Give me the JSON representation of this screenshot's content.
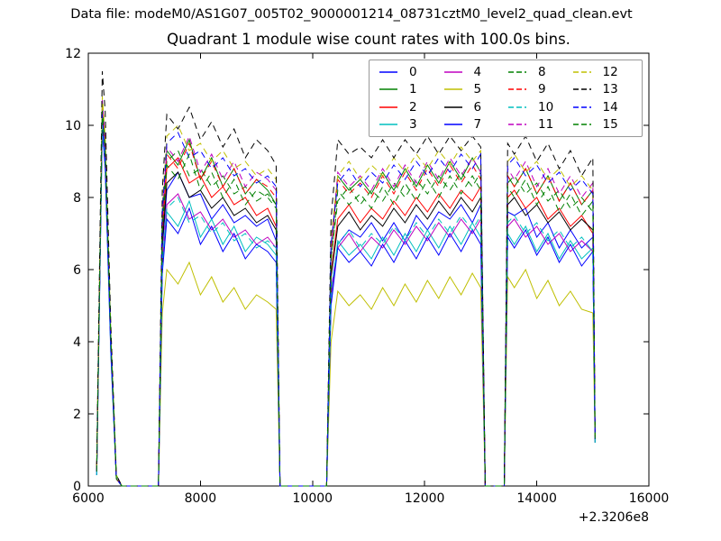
{
  "figure": {
    "datafile_label": "Data file: modeM0/AS1G07_005T02_9000001214_08731cztM0_level2_quad_clean.evt",
    "background_color": "#ffffff",
    "frame_color": "#000000",
    "legend_border_color": "#999999"
  },
  "chart_data": {
    "type": "line",
    "title": "Quadrant 1 module wise count rates with 100.0s bins.",
    "xlabel": "",
    "ylabel": "",
    "bin_seconds": 100.0,
    "grid": false,
    "legend_position": "upper center",
    "legend_columns": 4,
    "xlim": [
      6000,
      16000
    ],
    "ylim": [
      0,
      12
    ],
    "xticks": [
      6000,
      8000,
      10000,
      12000,
      14000,
      16000
    ],
    "yticks": [
      0,
      2,
      4,
      6,
      8,
      10,
      12
    ],
    "x_offset_label": "+2.3206e8",
    "x": [
      6150,
      6250,
      6300,
      6400,
      6500,
      6600,
      7250,
      7320,
      7400,
      7600,
      7800,
      8000,
      8200,
      8400,
      8600,
      8800,
      9000,
      9200,
      9350,
      9420,
      10250,
      10330,
      10450,
      10650,
      10850,
      11050,
      11250,
      11450,
      11650,
      11850,
      12050,
      12250,
      12450,
      12650,
      12850,
      13000,
      13080,
      13200,
      13420,
      13480,
      13600,
      13800,
      14000,
      14200,
      14400,
      14600,
      14800,
      15000,
      15040
    ],
    "series": [
      {
        "name": "0",
        "color": "#0000ff",
        "style": "solid",
        "values": [
          0.4,
          10.4,
          9.3,
          4.0,
          0.2,
          0,
          0,
          6.6,
          8.2,
          8.7,
          8.0,
          8.1,
          7.4,
          7.8,
          7.3,
          7.5,
          7.2,
          7.4,
          6.8,
          0,
          0,
          5.4,
          6.7,
          7.1,
          6.9,
          7.3,
          6.8,
          7.3,
          6.8,
          7.5,
          7.1,
          7.6,
          7.4,
          7.8,
          7.3,
          7.8,
          0,
          0,
          0,
          7.6,
          7.5,
          7.7,
          6.9,
          7.3,
          6.6,
          7.1,
          6.6,
          6.9,
          1.3
        ]
      },
      {
        "name": "1",
        "color": "#008000",
        "style": "solid",
        "values": [
          0.5,
          10.6,
          9.6,
          4.2,
          0.2,
          0,
          0,
          7.4,
          9.3,
          8.9,
          9.6,
          8.5,
          9.1,
          8.3,
          8.8,
          8.1,
          8.5,
          8.2,
          7.8,
          0,
          0,
          6.6,
          8.6,
          8.2,
          8.5,
          8.1,
          8.7,
          8.2,
          8.8,
          8.3,
          8.9,
          8.4,
          9.0,
          8.5,
          9.1,
          8.7,
          0,
          0,
          0,
          8.6,
          8.3,
          8.8,
          8.1,
          8.6,
          7.9,
          8.4,
          7.8,
          8.2,
          1.4
        ]
      },
      {
        "name": "2",
        "color": "#ff0000",
        "style": "solid",
        "values": [
          0.4,
          10.3,
          9.2,
          4.0,
          0.2,
          0,
          0,
          7.0,
          8.8,
          9.1,
          8.4,
          8.6,
          8.0,
          8.3,
          7.8,
          8.0,
          7.5,
          7.7,
          7.2,
          0,
          0,
          5.9,
          7.4,
          7.8,
          7.3,
          7.7,
          7.4,
          7.9,
          7.5,
          8.0,
          7.6,
          8.1,
          7.7,
          8.2,
          7.9,
          8.3,
          0,
          0,
          0,
          8.0,
          8.2,
          7.7,
          8.0,
          7.4,
          7.7,
          7.2,
          7.5,
          7.0,
          1.3
        ]
      },
      {
        "name": "3",
        "color": "#00bfbf",
        "style": "solid",
        "values": [
          0.3,
          10.0,
          8.9,
          3.8,
          0.2,
          0,
          0,
          6.1,
          7.6,
          7.2,
          7.9,
          6.9,
          7.4,
          6.7,
          7.2,
          6.5,
          6.9,
          6.7,
          6.4,
          0,
          0,
          5.1,
          6.8,
          6.4,
          6.7,
          6.3,
          6.9,
          6.4,
          7.0,
          6.5,
          7.1,
          6.6,
          7.2,
          6.7,
          7.3,
          6.9,
          0,
          0,
          0,
          7.0,
          6.7,
          7.2,
          6.5,
          7.0,
          6.3,
          6.8,
          6.3,
          6.6,
          1.2
        ]
      },
      {
        "name": "4",
        "color": "#bf00bf",
        "style": "solid",
        "values": [
          0.4,
          10.2,
          9.1,
          3.9,
          0.2,
          0,
          0,
          6.2,
          7.8,
          8.1,
          7.4,
          7.6,
          7.1,
          7.4,
          6.9,
          7.1,
          6.7,
          6.9,
          6.6,
          0,
          0,
          5.3,
          6.6,
          7.0,
          6.5,
          6.9,
          6.6,
          7.1,
          6.7,
          7.2,
          6.8,
          7.3,
          6.9,
          7.4,
          7.0,
          7.4,
          0,
          0,
          0,
          7.2,
          7.4,
          6.9,
          7.2,
          6.7,
          7.0,
          6.5,
          6.8,
          6.5,
          1.3
        ]
      },
      {
        "name": "5",
        "color": "#bfbf00",
        "style": "solid",
        "values": [
          0.5,
          10.5,
          9.4,
          4.1,
          0.2,
          0,
          0,
          4.8,
          6.0,
          5.6,
          6.2,
          5.3,
          5.8,
          5.1,
          5.5,
          4.9,
          5.3,
          5.1,
          4.9,
          0,
          0,
          4.0,
          5.4,
          5.0,
          5.3,
          4.9,
          5.5,
          5.0,
          5.6,
          5.1,
          5.7,
          5.2,
          5.8,
          5.3,
          5.9,
          5.5,
          0,
          0,
          0,
          5.8,
          5.5,
          6.0,
          5.2,
          5.7,
          5.0,
          5.4,
          4.9,
          4.8,
          1.2
        ]
      },
      {
        "name": "6",
        "color": "#000000",
        "style": "solid",
        "values": [
          0.4,
          10.4,
          9.3,
          4.0,
          0.2,
          0,
          0,
          6.7,
          8.4,
          8.7,
          8.0,
          8.2,
          7.7,
          8.0,
          7.5,
          7.7,
          7.3,
          7.5,
          7.1,
          0,
          0,
          5.8,
          7.2,
          7.6,
          7.1,
          7.5,
          7.2,
          7.7,
          7.3,
          7.8,
          7.4,
          7.9,
          7.5,
          8.0,
          7.6,
          8.0,
          0,
          0,
          0,
          7.8,
          8.0,
          7.5,
          7.8,
          7.3,
          7.6,
          7.1,
          7.4,
          7.1,
          1.3
        ]
      },
      {
        "name": "7",
        "color": "#0000ff",
        "style": "solid",
        "values": [
          0.3,
          9.9,
          8.8,
          3.7,
          0.2,
          0,
          0,
          5.9,
          7.4,
          7.0,
          7.7,
          6.7,
          7.2,
          6.5,
          7.0,
          6.3,
          6.7,
          6.5,
          6.2,
          0,
          0,
          5.0,
          6.6,
          6.2,
          6.5,
          6.1,
          6.7,
          6.2,
          6.8,
          6.3,
          6.9,
          6.4,
          7.0,
          6.5,
          7.1,
          6.7,
          0,
          0,
          0,
          6.9,
          6.6,
          7.1,
          6.4,
          6.9,
          6.2,
          6.7,
          6.1,
          6.5,
          1.2
        ]
      },
      {
        "name": "8",
        "color": "#008000",
        "style": "dashed",
        "values": [
          0.5,
          10.6,
          9.5,
          4.2,
          0.3,
          0,
          0,
          7.2,
          9.0,
          9.3,
          8.6,
          8.8,
          8.3,
          8.6,
          8.1,
          8.3,
          7.9,
          8.1,
          7.8,
          0,
          0,
          6.3,
          7.9,
          8.3,
          7.8,
          8.2,
          7.9,
          8.4,
          8.0,
          8.5,
          8.1,
          8.6,
          8.2,
          8.7,
          8.3,
          8.7,
          0,
          0,
          0,
          8.4,
          8.6,
          8.1,
          8.4,
          7.9,
          8.2,
          7.7,
          8.0,
          7.6,
          1.4
        ]
      },
      {
        "name": "9",
        "color": "#ff0000",
        "style": "dashed",
        "values": [
          0.4,
          10.5,
          9.4,
          4.1,
          0.2,
          0,
          0,
          7.4,
          9.2,
          8.8,
          9.5,
          8.5,
          9.0,
          8.3,
          8.8,
          8.1,
          8.5,
          8.3,
          8.0,
          0,
          0,
          6.5,
          8.5,
          8.1,
          8.4,
          8.0,
          8.6,
          8.1,
          8.7,
          8.2,
          8.8,
          8.3,
          8.9,
          8.4,
          8.9,
          8.5,
          0,
          0,
          0,
          8.6,
          8.3,
          8.8,
          8.1,
          8.6,
          7.9,
          8.4,
          7.8,
          8.2,
          1.3
        ]
      },
      {
        "name": "10",
        "color": "#00bfbf",
        "style": "dashed",
        "values": [
          0.3,
          10.1,
          9.0,
          3.8,
          0.2,
          0,
          0,
          6.2,
          7.7,
          8.0,
          7.3,
          7.5,
          7.0,
          7.3,
          6.8,
          7.0,
          6.6,
          6.8,
          6.6,
          0,
          0,
          5.4,
          6.7,
          7.1,
          6.6,
          7.0,
          6.7,
          7.2,
          6.8,
          7.3,
          6.9,
          7.4,
          7.0,
          7.5,
          7.1,
          7.5,
          0,
          0,
          0,
          7.3,
          7.5,
          7.0,
          7.3,
          6.8,
          7.1,
          6.6,
          6.9,
          6.5,
          1.2
        ]
      },
      {
        "name": "11",
        "color": "#bf00bf",
        "style": "dashed",
        "values": [
          0.5,
          10.7,
          9.6,
          4.2,
          0.3,
          0,
          0,
          7.5,
          9.4,
          9.0,
          9.7,
          8.7,
          9.2,
          8.5,
          9.0,
          8.3,
          8.7,
          8.5,
          8.2,
          0,
          0,
          6.6,
          8.7,
          8.3,
          8.6,
          8.2,
          8.8,
          8.3,
          8.9,
          8.4,
          9.0,
          8.5,
          9.1,
          8.6,
          9.1,
          8.7,
          0,
          0,
          0,
          8.8,
          8.5,
          9.0,
          8.3,
          8.8,
          8.1,
          8.6,
          8.0,
          8.4,
          1.4
        ]
      },
      {
        "name": "12",
        "color": "#bfbf00",
        "style": "dashed",
        "values": [
          0.5,
          10.8,
          9.7,
          4.3,
          0.3,
          0,
          0,
          7.8,
          9.7,
          10.0,
          9.3,
          9.5,
          9.0,
          9.3,
          8.8,
          9.0,
          8.6,
          8.8,
          8.5,
          0,
          0,
          6.9,
          8.6,
          9.0,
          8.5,
          8.9,
          8.6,
          9.1,
          8.7,
          9.2,
          8.8,
          9.3,
          8.9,
          9.4,
          9.0,
          9.3,
          0,
          0,
          0,
          9.0,
          9.2,
          8.7,
          9.0,
          8.5,
          8.8,
          8.3,
          8.6,
          8.2,
          1.4
        ]
      },
      {
        "name": "13",
        "color": "#000000",
        "style": "dashed",
        "values": [
          0.6,
          11.5,
          10.4,
          4.5,
          0.3,
          0,
          0,
          8.2,
          10.3,
          9.9,
          10.5,
          9.6,
          10.1,
          9.4,
          9.9,
          9.1,
          9.6,
          9.3,
          8.9,
          0,
          0,
          7.4,
          9.6,
          9.2,
          9.4,
          9.1,
          9.6,
          9.1,
          9.6,
          9.2,
          9.7,
          9.2,
          9.7,
          9.3,
          9.7,
          9.4,
          0,
          0,
          0,
          9.5,
          9.2,
          9.7,
          9.0,
          9.5,
          8.8,
          9.3,
          8.6,
          9.1,
          1.5
        ]
      },
      {
        "name": "14",
        "color": "#0000ff",
        "style": "dashed",
        "values": [
          0.4,
          10.3,
          9.2,
          4.0,
          0.2,
          0,
          0,
          7.6,
          9.5,
          9.8,
          9.1,
          9.3,
          8.8,
          9.1,
          8.6,
          8.8,
          8.4,
          8.6,
          8.3,
          0,
          0,
          6.7,
          8.4,
          8.8,
          8.3,
          8.7,
          8.4,
          8.9,
          8.5,
          9.0,
          8.6,
          9.1,
          8.7,
          9.2,
          8.8,
          9.2,
          0,
          0,
          0,
          8.9,
          9.1,
          8.6,
          8.9,
          8.4,
          8.7,
          8.2,
          8.5,
          8.1,
          1.3
        ]
      },
      {
        "name": "15",
        "color": "#008000",
        "style": "dashed",
        "values": [
          0.4,
          10.4,
          9.3,
          4.1,
          0.2,
          0,
          0,
          7.1,
          8.9,
          8.5,
          9.2,
          8.2,
          8.7,
          8.0,
          8.5,
          7.8,
          8.2,
          8.0,
          7.7,
          0,
          0,
          6.2,
          8.2,
          7.8,
          8.1,
          7.7,
          8.3,
          7.8,
          8.4,
          7.9,
          8.5,
          8.0,
          8.6,
          8.1,
          8.6,
          8.2,
          0,
          0,
          0,
          8.3,
          8.0,
          8.5,
          7.8,
          8.3,
          7.6,
          8.1,
          7.5,
          7.9,
          1.3
        ]
      }
    ]
  }
}
